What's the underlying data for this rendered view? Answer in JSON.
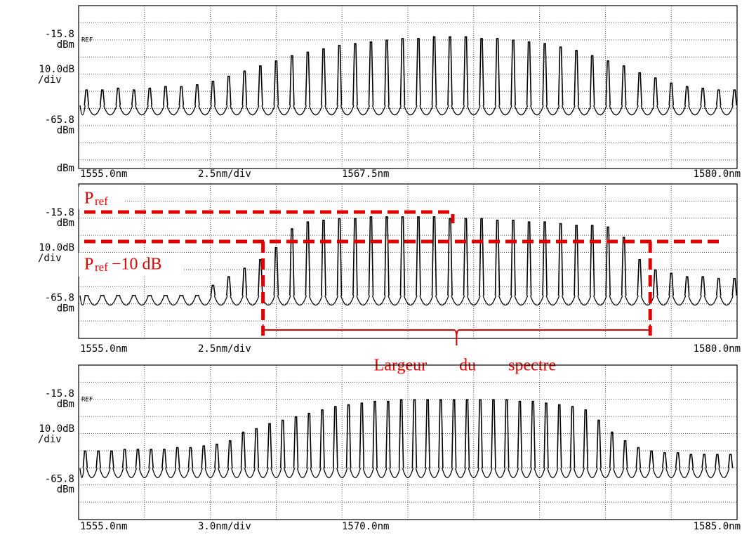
{
  "chart_data": [
    {
      "type": "spectrum",
      "color": "#000000",
      "xlim": [
        1555,
        1580
      ],
      "xticks": [
        {
          "value": 1555,
          "label": "1555.0nm"
        },
        {
          "value": 1567.5,
          "label": "1567.5nm"
        },
        {
          "value": 1580,
          "label": "1580.0nm"
        }
      ],
      "x_scale_label": "2.5nm/div",
      "xgrid": [
        1555,
        1557.5,
        1560,
        1562.5,
        1565,
        1567.5,
        1570,
        1572.5,
        1575,
        1577.5,
        1580
      ],
      "ylim": [
        -90.8,
        4.2
      ],
      "yticks": [
        -15.8,
        -65.8
      ],
      "y_unit": "dBm",
      "y_scale_label": [
        "10.0dB",
        "/div"
      ],
      "ref_label": "REF",
      "bottom_unit": "dBm",
      "ygrid": [
        -5.8,
        -15.8,
        -25.8,
        -35.8,
        -45.8,
        -55.8,
        -65.8,
        -75.8,
        -85.8
      ],
      "floor": -61,
      "x": [
        1555.3,
        1555.9,
        1556.5,
        1557.1,
        1557.7,
        1558.3,
        1558.9,
        1559.5,
        1560.1,
        1560.7,
        1561.3,
        1561.9,
        1562.5,
        1563.1,
        1563.7,
        1564.3,
        1564.9,
        1565.5,
        1566.1,
        1566.7,
        1567.3,
        1567.9,
        1568.5,
        1569.1,
        1569.7,
        1570.3,
        1570.9,
        1571.5,
        1572.1,
        1572.7,
        1573.3,
        1573.9,
        1574.5,
        1575.1,
        1575.7,
        1576.3,
        1576.9,
        1577.5,
        1578.1,
        1578.7,
        1579.3,
        1579.9
      ],
      "values": [
        -45,
        -45,
        -44,
        -45,
        -44,
        -43,
        -43,
        -42,
        -40,
        -37,
        -34,
        -31,
        -28,
        -25,
        -23,
        -21,
        -19,
        -18,
        -17,
        -16,
        -15,
        -15,
        -14,
        -14,
        -14,
        -15,
        -15,
        -16,
        -17,
        -18,
        -20,
        -22,
        -25,
        -28,
        -31,
        -35,
        -38,
        -41,
        -43,
        -44,
        -45,
        -45
      ]
    },
    {
      "type": "spectrum",
      "color": "#000000",
      "xlim": [
        1555,
        1580
      ],
      "xticks": [
        {
          "value": 1555,
          "label": "1555.0nm"
        },
        {
          "value": 1580,
          "label": "1580.0nm"
        }
      ],
      "x_scale_label": "2.5nm/div",
      "xgrid": [
        1555,
        1557.5,
        1560,
        1562.5,
        1565,
        1567.5,
        1570,
        1572.5,
        1575,
        1577.5,
        1580
      ],
      "ylim": [
        -86,
        4.2
      ],
      "yticks": [
        -15.8,
        -65.8
      ],
      "y_unit": "dBm",
      "y_scale_label": [
        "10.0dB",
        "/div"
      ],
      "ygrid": [
        -5.8,
        -15.8,
        -25.8,
        -35.8,
        -45.8,
        -55.8,
        -65.8,
        -75.8
      ],
      "floor": -68,
      "x": [
        1555.3,
        1555.9,
        1556.5,
        1557.1,
        1557.7,
        1558.3,
        1558.9,
        1559.5,
        1560.1,
        1560.7,
        1561.3,
        1561.9,
        1562.5,
        1563.1,
        1563.7,
        1564.3,
        1564.9,
        1565.5,
        1566.1,
        1566.7,
        1567.3,
        1567.9,
        1568.5,
        1569.1,
        1569.7,
        1570.3,
        1570.9,
        1571.5,
        1572.1,
        1572.7,
        1573.3,
        1573.9,
        1574.5,
        1575.1,
        1575.7,
        1576.3,
        1576.9,
        1577.5,
        1578.1,
        1578.7,
        1579.3,
        1579.9
      ],
      "values": [
        -61,
        -61,
        -61,
        -61,
        -61,
        -61,
        -61,
        -61,
        -55,
        -50,
        -45,
        -40,
        -33,
        -22,
        -18,
        -17,
        -16,
        -16,
        -15,
        -15,
        -15,
        -15,
        -15,
        -16,
        -16,
        -16,
        -17,
        -17,
        -18,
        -18,
        -19,
        -20,
        -20,
        -21,
        -27,
        -40,
        -46,
        -48,
        -50,
        -50,
        -51,
        -51
      ],
      "annotations": {
        "color": "#e00000",
        "p_ref": {
          "text": "P",
          "sub": "ref",
          "level": -12.2
        },
        "p_ref_minus_10": {
          "text": "P",
          "sub": "ref",
          "suffix": "−10 dB",
          "level": -29.4
        },
        "width": {
          "label": "Largeur du spectre",
          "x": [
            1562.0,
            1576.7
          ]
        }
      }
    },
    {
      "type": "spectrum",
      "color": "#000000",
      "xlim": [
        1555,
        1585
      ],
      "xticks": [
        {
          "value": 1555,
          "label": "1555.0nm"
        },
        {
          "value": 1570,
          "label": "1570.0nm"
        },
        {
          "value": 1585,
          "label": "1585.0nm"
        }
      ],
      "x_scale_label": "3.0nm/div",
      "xgrid": [
        1555,
        1558,
        1561,
        1564,
        1567,
        1570,
        1573,
        1576,
        1579,
        1582,
        1585
      ],
      "ylim": [
        -86,
        4.2
      ],
      "yticks": [
        -15.8,
        -65.8
      ],
      "y_unit": "dBm",
      "y_scale_label": [
        "10.0dB",
        "/div"
      ],
      "ref_label": "REF",
      "ygrid": [
        -5.8,
        -15.8,
        -25.8,
        -35.8,
        -45.8,
        -55.8,
        -65.8,
        -75.8
      ],
      "floor": -63,
      "x": [
        1555.3,
        1555.9,
        1556.5,
        1557.1,
        1557.7,
        1558.3,
        1558.9,
        1559.5,
        1560.1,
        1560.7,
        1561.3,
        1561.9,
        1562.5,
        1563.1,
        1563.7,
        1564.3,
        1564.9,
        1565.5,
        1566.1,
        1566.7,
        1567.3,
        1567.9,
        1568.5,
        1569.1,
        1569.7,
        1570.3,
        1570.9,
        1571.5,
        1572.1,
        1572.7,
        1573.3,
        1573.9,
        1574.5,
        1575.1,
        1575.7,
        1576.3,
        1576.9,
        1577.5,
        1578.1,
        1578.7,
        1579.3,
        1579.9,
        1580.5,
        1581.1,
        1581.7,
        1582.3,
        1582.9,
        1583.5,
        1584.1,
        1584.7
      ],
      "values": [
        -46,
        -46,
        -46,
        -45,
        -45,
        -45,
        -45,
        -44,
        -44,
        -43,
        -42,
        -40,
        -35,
        -33,
        -30,
        -28,
        -26,
        -24,
        -22,
        -20,
        -19,
        -18,
        -17,
        -17,
        -16,
        -16,
        -16,
        -16,
        -16,
        -16,
        -16,
        -16,
        -16,
        -17,
        -17,
        -18,
        -19,
        -20,
        -22,
        -28,
        -35,
        -40,
        -44,
        -46,
        -47,
        -47,
        -48,
        -48,
        -48,
        -48
      ]
    }
  ]
}
